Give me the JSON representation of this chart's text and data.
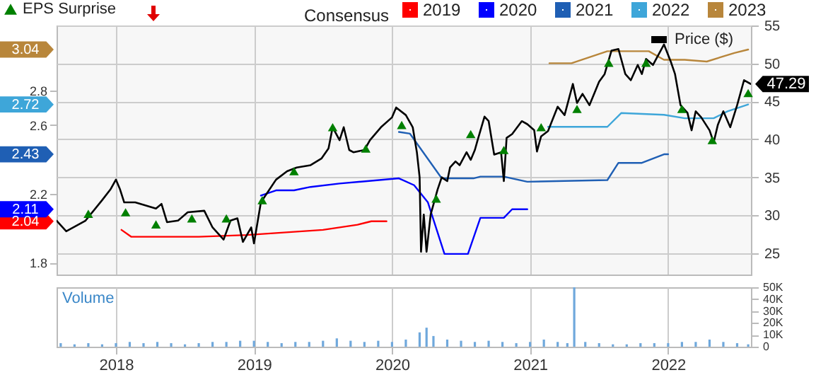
{
  "chart_data": [
    {
      "type": "line",
      "legend_title": "Consensus",
      "legend": "top",
      "grid": true,
      "tick_labels": "y",
      "line_style": "solid",
      "xlim": [
        2017.57,
        2022.6
      ],
      "xticks": [
        2018,
        2019,
        2020,
        2021,
        2022
      ],
      "ylim": [
        1.73,
        3.18
      ],
      "yticks": [
        1.8,
        2.2,
        2.6,
        2.8
      ],
      "y2lim": [
        22.2,
        55
      ],
      "y2ticks": [
        25,
        30,
        35,
        40,
        45,
        50,
        55
      ],
      "series": [
        {
          "name": "2019",
          "color": "#ff0000",
          "x": [
            2018.04,
            2018.11,
            2018.6,
            2018.95,
            2019.5,
            2019.75,
            2019.85,
            2019.96
          ],
          "values": [
            1.99,
            1.95,
            1.95,
            1.96,
            1.99,
            2.02,
            2.04,
            2.04
          ]
        },
        {
          "name": "2020",
          "color": "#0000ff",
          "x": [
            2019.05,
            2019.16,
            2019.29,
            2019.41,
            2019.62,
            2020.05,
            2020.16,
            2020.26,
            2020.38,
            2020.55,
            2020.64,
            2020.81,
            2020.87,
            2020.98
          ],
          "values": [
            2.19,
            2.22,
            2.22,
            2.24,
            2.26,
            2.29,
            2.25,
            2.15,
            1.85,
            1.85,
            2.06,
            2.06,
            2.11,
            2.11
          ]
        },
        {
          "name": "2021",
          "color": "#1f5fb4",
          "x": [
            2020.05,
            2020.13,
            2020.36,
            2020.59,
            2020.64,
            2020.81,
            2020.98,
            2021.56,
            2021.64,
            2021.81,
            2021.97,
            2022.0
          ],
          "values": [
            2.56,
            2.55,
            2.29,
            2.29,
            2.3,
            2.3,
            2.27,
            2.28,
            2.38,
            2.38,
            2.43,
            2.43
          ]
        },
        {
          "name": "2022",
          "color": "#3ea6d9",
          "x": [
            2021.13,
            2021.56,
            2021.66,
            2021.97,
            2022.12,
            2022.33,
            2022.43,
            2022.58
          ],
          "values": [
            2.59,
            2.59,
            2.67,
            2.66,
            2.64,
            2.64,
            2.68,
            2.72
          ]
        },
        {
          "name": "2023",
          "color": "#b8863b",
          "x": [
            2021.14,
            2021.3,
            2021.56,
            2021.86,
            2021.97,
            2022.12,
            2022.28,
            2022.48,
            2022.58
          ],
          "values": [
            2.96,
            2.96,
            3.03,
            3.03,
            2.98,
            2.98,
            2.97,
            3.02,
            3.04
          ]
        },
        {
          "name": "Price ($)",
          "color": "#000000",
          "axis": "y2",
          "x": [
            2017.57,
            2017.64,
            2017.78,
            2017.9,
            2017.96,
            2018.0,
            2018.03,
            2018.06,
            2018.14,
            2018.29,
            2018.33,
            2018.37,
            2018.45,
            2018.52,
            2018.64,
            2018.7,
            2018.78,
            2018.83,
            2018.88,
            2018.92,
            2018.98,
            2019.0,
            2019.05,
            2019.16,
            2019.24,
            2019.31,
            2019.41,
            2019.49,
            2019.54,
            2019.57,
            2019.62,
            2019.65,
            2019.69,
            2019.72,
            2019.8,
            2019.84,
            2019.92,
            2020.0,
            2020.03,
            2020.1,
            2020.15,
            2020.18,
            2020.2,
            2020.21,
            2020.23,
            2020.25,
            2020.28,
            2020.33,
            2020.36,
            2020.4,
            2020.42,
            2020.46,
            2020.49,
            2020.54,
            2020.57,
            2020.6,
            2020.62,
            2020.67,
            2020.7,
            2020.74,
            2020.79,
            2020.81,
            2020.83,
            2020.87,
            2020.94,
            2020.98,
            2021.03,
            2021.05,
            2021.08,
            2021.13,
            2021.2,
            2021.25,
            2021.31,
            2021.34,
            2021.38,
            2021.43,
            2021.5,
            2021.54,
            2021.59,
            2021.64,
            2021.69,
            2021.73,
            2021.78,
            2021.81,
            2021.84,
            2021.89,
            2021.97,
            2022.02,
            2022.05,
            2022.09,
            2022.14,
            2022.17,
            2022.2,
            2022.24,
            2022.3,
            2022.33,
            2022.36,
            2022.4,
            2022.45,
            2022.5,
            2022.55,
            2022.6
          ],
          "values": [
            29.3,
            27.9,
            29.3,
            32.0,
            33.4,
            34.7,
            33.4,
            31.7,
            31.7,
            30.9,
            31.5,
            29.1,
            29.3,
            30.4,
            30.6,
            28.4,
            26.8,
            29.3,
            29.6,
            26.5,
            28.4,
            26.3,
            31.7,
            34.7,
            35.8,
            36.3,
            36.6,
            37.5,
            38.8,
            41.6,
            39.9,
            41.6,
            38.6,
            38.3,
            38.6,
            39.9,
            41.6,
            42.9,
            44.2,
            43.2,
            41.6,
            38.3,
            35.0,
            25.2,
            30.1,
            25.2,
            30.1,
            33.4,
            35.0,
            34.5,
            36.3,
            37.1,
            36.6,
            38.3,
            37.3,
            38.6,
            39.9,
            43.0,
            42.4,
            38.0,
            38.3,
            34.5,
            40.2,
            40.7,
            42.4,
            42.0,
            41.2,
            38.4,
            40.4,
            41.1,
            44.3,
            43.2,
            47.3,
            44.8,
            46.0,
            44.5,
            47.6,
            48.6,
            51.7,
            51.9,
            48.6,
            47.8,
            49.8,
            48.6,
            50.6,
            49.8,
            52.5,
            50.2,
            48.6,
            44.5,
            43.5,
            41.2,
            43.7,
            42.9,
            41.2,
            39.6,
            41.9,
            43.7,
            41.6,
            44.5,
            47.8,
            47.29
          ]
        },
        {
          "name": "EPS Surprise",
          "type": "scatter",
          "marker": "triangle",
          "color": "#008000",
          "axis": "y2",
          "x": [
            2017.8,
            2018.07,
            2018.29,
            2018.55,
            2018.8,
            2019.06,
            2019.29,
            2019.57,
            2019.81,
            2020.07,
            2020.32,
            2020.57,
            2020.81,
            2021.08,
            2021.34,
            2021.57,
            2021.84,
            2022.1,
            2022.32,
            2022.58
          ],
          "values": [
            30.2,
            30.4,
            28.8,
            29.6,
            29.6,
            32.0,
            35.8,
            41.6,
            38.8,
            41.9,
            32.2,
            40.7,
            38.6,
            41.6,
            44.0,
            50.1,
            50.1,
            44.0,
            39.9,
            46.1
          ]
        }
      ],
      "annotations": [
        "2.04",
        "2.11",
        "2.43",
        "2.72",
        "3.04",
        "47.29"
      ]
    },
    {
      "type": "bar",
      "color": "#6fa8dc",
      "grid": "x",
      "annotations": [
        "Volume"
      ],
      "xlim": [
        2017.57,
        2022.6
      ],
      "xticks": [
        2018,
        2019,
        2020,
        2021,
        2022
      ],
      "ylim": [
        0,
        50000
      ],
      "yticks": [
        0,
        {
          "value": 10000,
          "label": "10K"
        },
        {
          "value": 20000,
          "label": "20K"
        },
        {
          "value": 30000,
          "label": "30K"
        },
        {
          "value": 40000,
          "label": "40K"
        },
        {
          "value": 50000,
          "label": "50K"
        }
      ],
      "x": [
        2017.6,
        2017.7,
        2017.8,
        2017.9,
        2018.0,
        2018.1,
        2018.2,
        2018.3,
        2018.4,
        2018.5,
        2018.6,
        2018.7,
        2018.8,
        2018.9,
        2019.0,
        2019.1,
        2019.2,
        2019.3,
        2019.4,
        2019.5,
        2019.6,
        2019.7,
        2019.8,
        2019.9,
        2020.0,
        2020.1,
        2020.2,
        2020.25,
        2020.3,
        2020.4,
        2020.5,
        2020.6,
        2020.7,
        2020.8,
        2020.9,
        2021.0,
        2021.1,
        2021.2,
        2021.27,
        2021.32,
        2021.4,
        2021.5,
        2021.6,
        2021.7,
        2021.8,
        2021.9,
        2022.0,
        2022.1,
        2022.2,
        2022.3,
        2022.4,
        2022.5,
        2022.58
      ],
      "values": [
        3000,
        2000,
        3000,
        2000,
        3000,
        4000,
        3000,
        4000,
        3000,
        2000,
        3000,
        4000,
        4000,
        5000,
        5000,
        4000,
        3000,
        4000,
        4000,
        5000,
        7000,
        5000,
        4000,
        5000,
        4000,
        6000,
        12000,
        16000,
        9000,
        6000,
        5000,
        4000,
        5000,
        4000,
        3000,
        4000,
        6000,
        4000,
        3000,
        50000,
        4000,
        3000,
        2000,
        2000,
        3000,
        3000,
        3000,
        4000,
        4000,
        6000,
        4000,
        3000,
        2000
      ]
    }
  ]
}
